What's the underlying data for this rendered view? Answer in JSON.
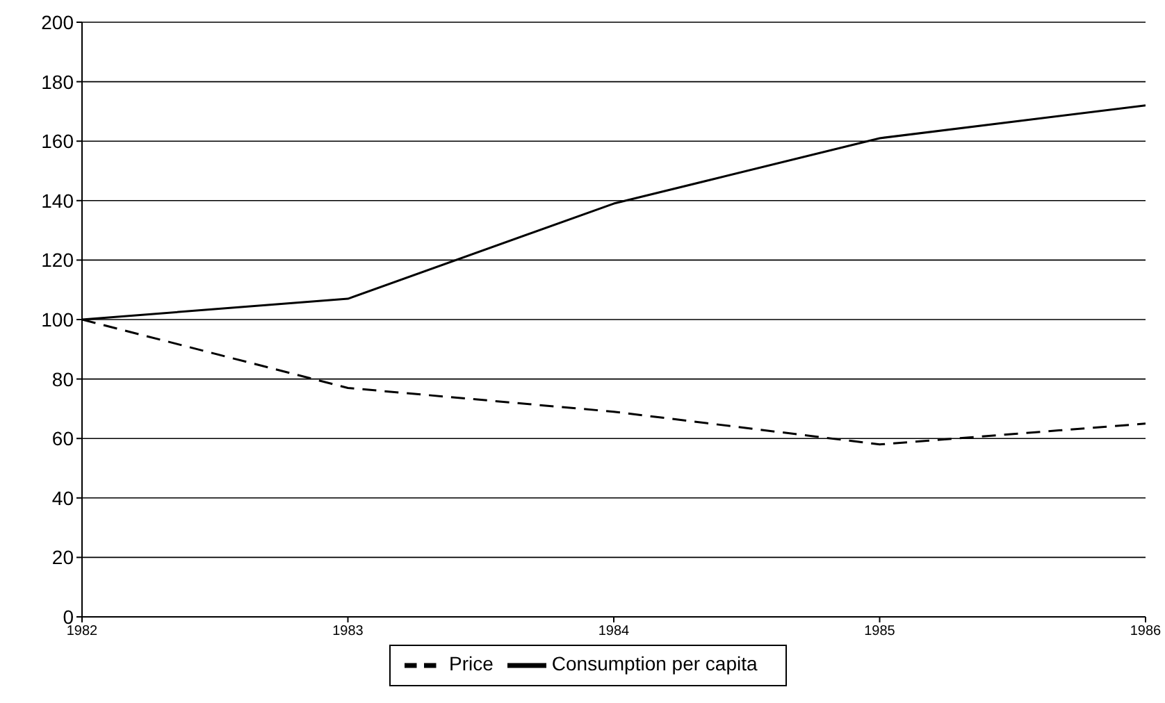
{
  "chart_data": {
    "type": "line",
    "x": [
      1982,
      1983,
      1984,
      1985,
      1986
    ],
    "series": [
      {
        "name": "Price",
        "color": "#000000",
        "line_style": "dashed",
        "values": [
          100,
          77,
          69,
          58,
          65
        ]
      },
      {
        "name": "Consumption per capita",
        "color": "#000000",
        "line_style": "solid",
        "values": [
          100,
          107,
          139,
          161,
          172
        ]
      }
    ],
    "xlim": [
      1982,
      1986
    ],
    "xticks": [
      1982,
      1983,
      1984,
      1985,
      1986
    ],
    "ylim": [
      0,
      200
    ],
    "yticks": [
      0,
      20,
      40,
      60,
      80,
      100,
      120,
      140,
      160,
      180,
      200
    ],
    "grid": "y",
    "legend": "bottom",
    "marker": "none"
  }
}
